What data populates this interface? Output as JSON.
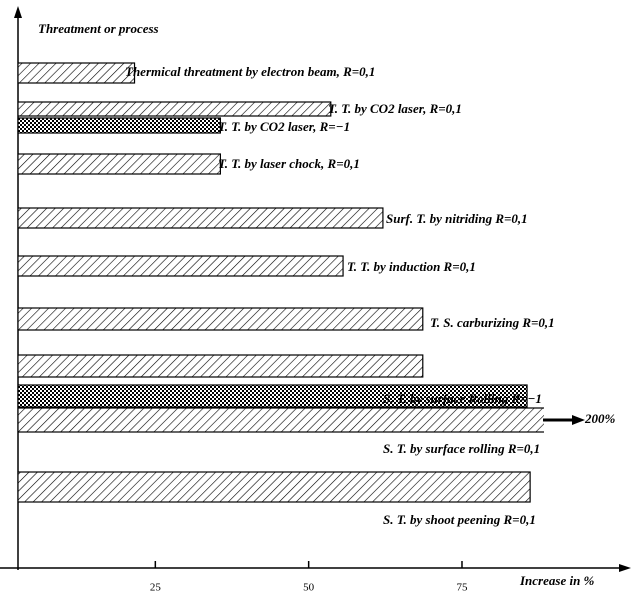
{
  "chart_data": {
    "type": "barh",
    "y_label": "Threatment or process",
    "x_label": "Increase in %",
    "categories": [
      "Thermical threatment by electron beam, R=0,1",
      "T. T. by CO2 laser, R=0,1",
      "T. T. by CO2 laser, R=−1",
      "T. T. by laser chock, R=0,1",
      "Surf. T. by nitriding R=0,1",
      "T. T. by induction R=0,1",
      "T. S. carburizing R=0,1",
      "S. T. by surface Rolling R=−1",
      null,
      "S. T. by surface rolling R=0,1",
      "S. T. by shoot peening R=0,1"
    ],
    "values": [
      19,
      51,
      33,
      33,
      59.5,
      53,
      66,
      66,
      83,
      200,
      83.5
    ],
    "value_labels": [
      null,
      null,
      null,
      null,
      null,
      null,
      null,
      null,
      null,
      "200%",
      null
    ],
    "fills": [
      "hatch",
      "hatch",
      "checker",
      "hatch",
      "hatch",
      "hatch",
      "hatch",
      "hatch",
      "checker",
      "hatch",
      "hatch"
    ],
    "xlim": [
      0,
      85.6
    ],
    "xticks": [
      25,
      50,
      75
    ],
    "color": "#000000"
  }
}
